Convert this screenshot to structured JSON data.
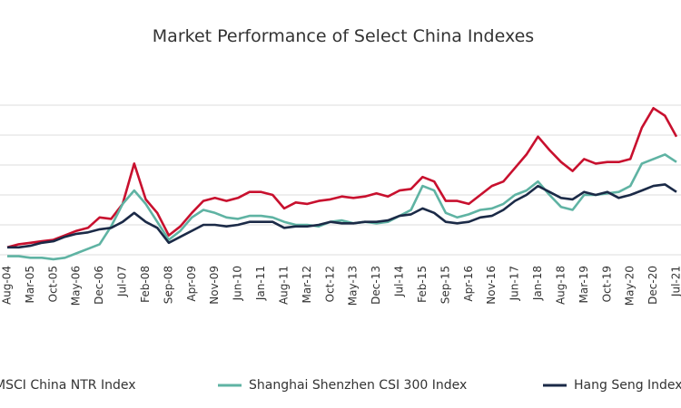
{
  "chart_data": {
    "type": "line",
    "title": "Market Performance of Select China Indexes",
    "categories": [
      "Aug-04",
      null,
      "Mar-05",
      null,
      "Oct-05",
      null,
      "May-06",
      null,
      "Dec-06",
      null,
      "Jul-07",
      null,
      "Feb-08",
      null,
      "Sep-08",
      null,
      "Apr-09",
      null,
      "Nov-09",
      null,
      "Jun-10",
      null,
      "Jan-11",
      null,
      "Aug-11",
      null,
      "Mar-12",
      null,
      "Oct-12",
      null,
      "May-13",
      null,
      "Dec-13",
      null,
      "Jul-14",
      null,
      "Feb-15",
      null,
      "Sep-15",
      null,
      "Apr-16",
      null,
      "Nov-16",
      null,
      "Jun-17",
      null,
      "Jan-18",
      null,
      "Aug-18",
      null,
      "Mar-19",
      null,
      "Oct-19",
      null,
      "May-20",
      null,
      "Dec-20",
      null,
      "Jul-21"
    ],
    "series": [
      {
        "name": "MSCI China NTR Index",
        "color": "#c8102e",
        "values": [
          125,
          135,
          140,
          145,
          150,
          165,
          180,
          190,
          225,
          220,
          270,
          405,
          285,
          240,
          165,
          195,
          240,
          280,
          290,
          280,
          290,
          310,
          310,
          300,
          255,
          275,
          270,
          280,
          285,
          295,
          290,
          295,
          305,
          295,
          315,
          320,
          360,
          345,
          280,
          280,
          270,
          300,
          330,
          345,
          390,
          435,
          495,
          450,
          410,
          380,
          420,
          405,
          410,
          410,
          420,
          525,
          590,
          565,
          495
        ]
      },
      {
        "name": "Shanghai Shenzhen CSI 300 Index",
        "color": "#5fb3a3",
        "values": [
          95,
          95,
          90,
          90,
          85,
          90,
          105,
          120,
          135,
          195,
          270,
          315,
          270,
          210,
          150,
          180,
          225,
          250,
          240,
          225,
          220,
          230,
          230,
          225,
          210,
          200,
          200,
          195,
          210,
          215,
          205,
          210,
          205,
          210,
          230,
          250,
          330,
          315,
          240,
          225,
          235,
          250,
          255,
          270,
          300,
          315,
          345,
          300,
          260,
          250,
          300,
          300,
          305,
          310,
          330,
          405,
          420,
          435,
          410
        ]
      },
      {
        "name": "Hang Seng Index",
        "color": "#1b2a47",
        "values": [
          125,
          125,
          130,
          140,
          145,
          160,
          170,
          175,
          185,
          190,
          210,
          240,
          210,
          190,
          140,
          160,
          180,
          200,
          200,
          195,
          200,
          210,
          210,
          210,
          190,
          195,
          195,
          200,
          210,
          205,
          205,
          210,
          210,
          215,
          230,
          235,
          255,
          240,
          210,
          205,
          210,
          225,
          230,
          250,
          280,
          300,
          330,
          310,
          290,
          285,
          310,
          300,
          310,
          290,
          300,
          315,
          330,
          335,
          310
        ]
      }
    ],
    "ylim": [
      50,
      700
    ],
    "yticks": [
      100,
      200,
      300,
      400,
      500,
      600
    ],
    "grid": true
  }
}
